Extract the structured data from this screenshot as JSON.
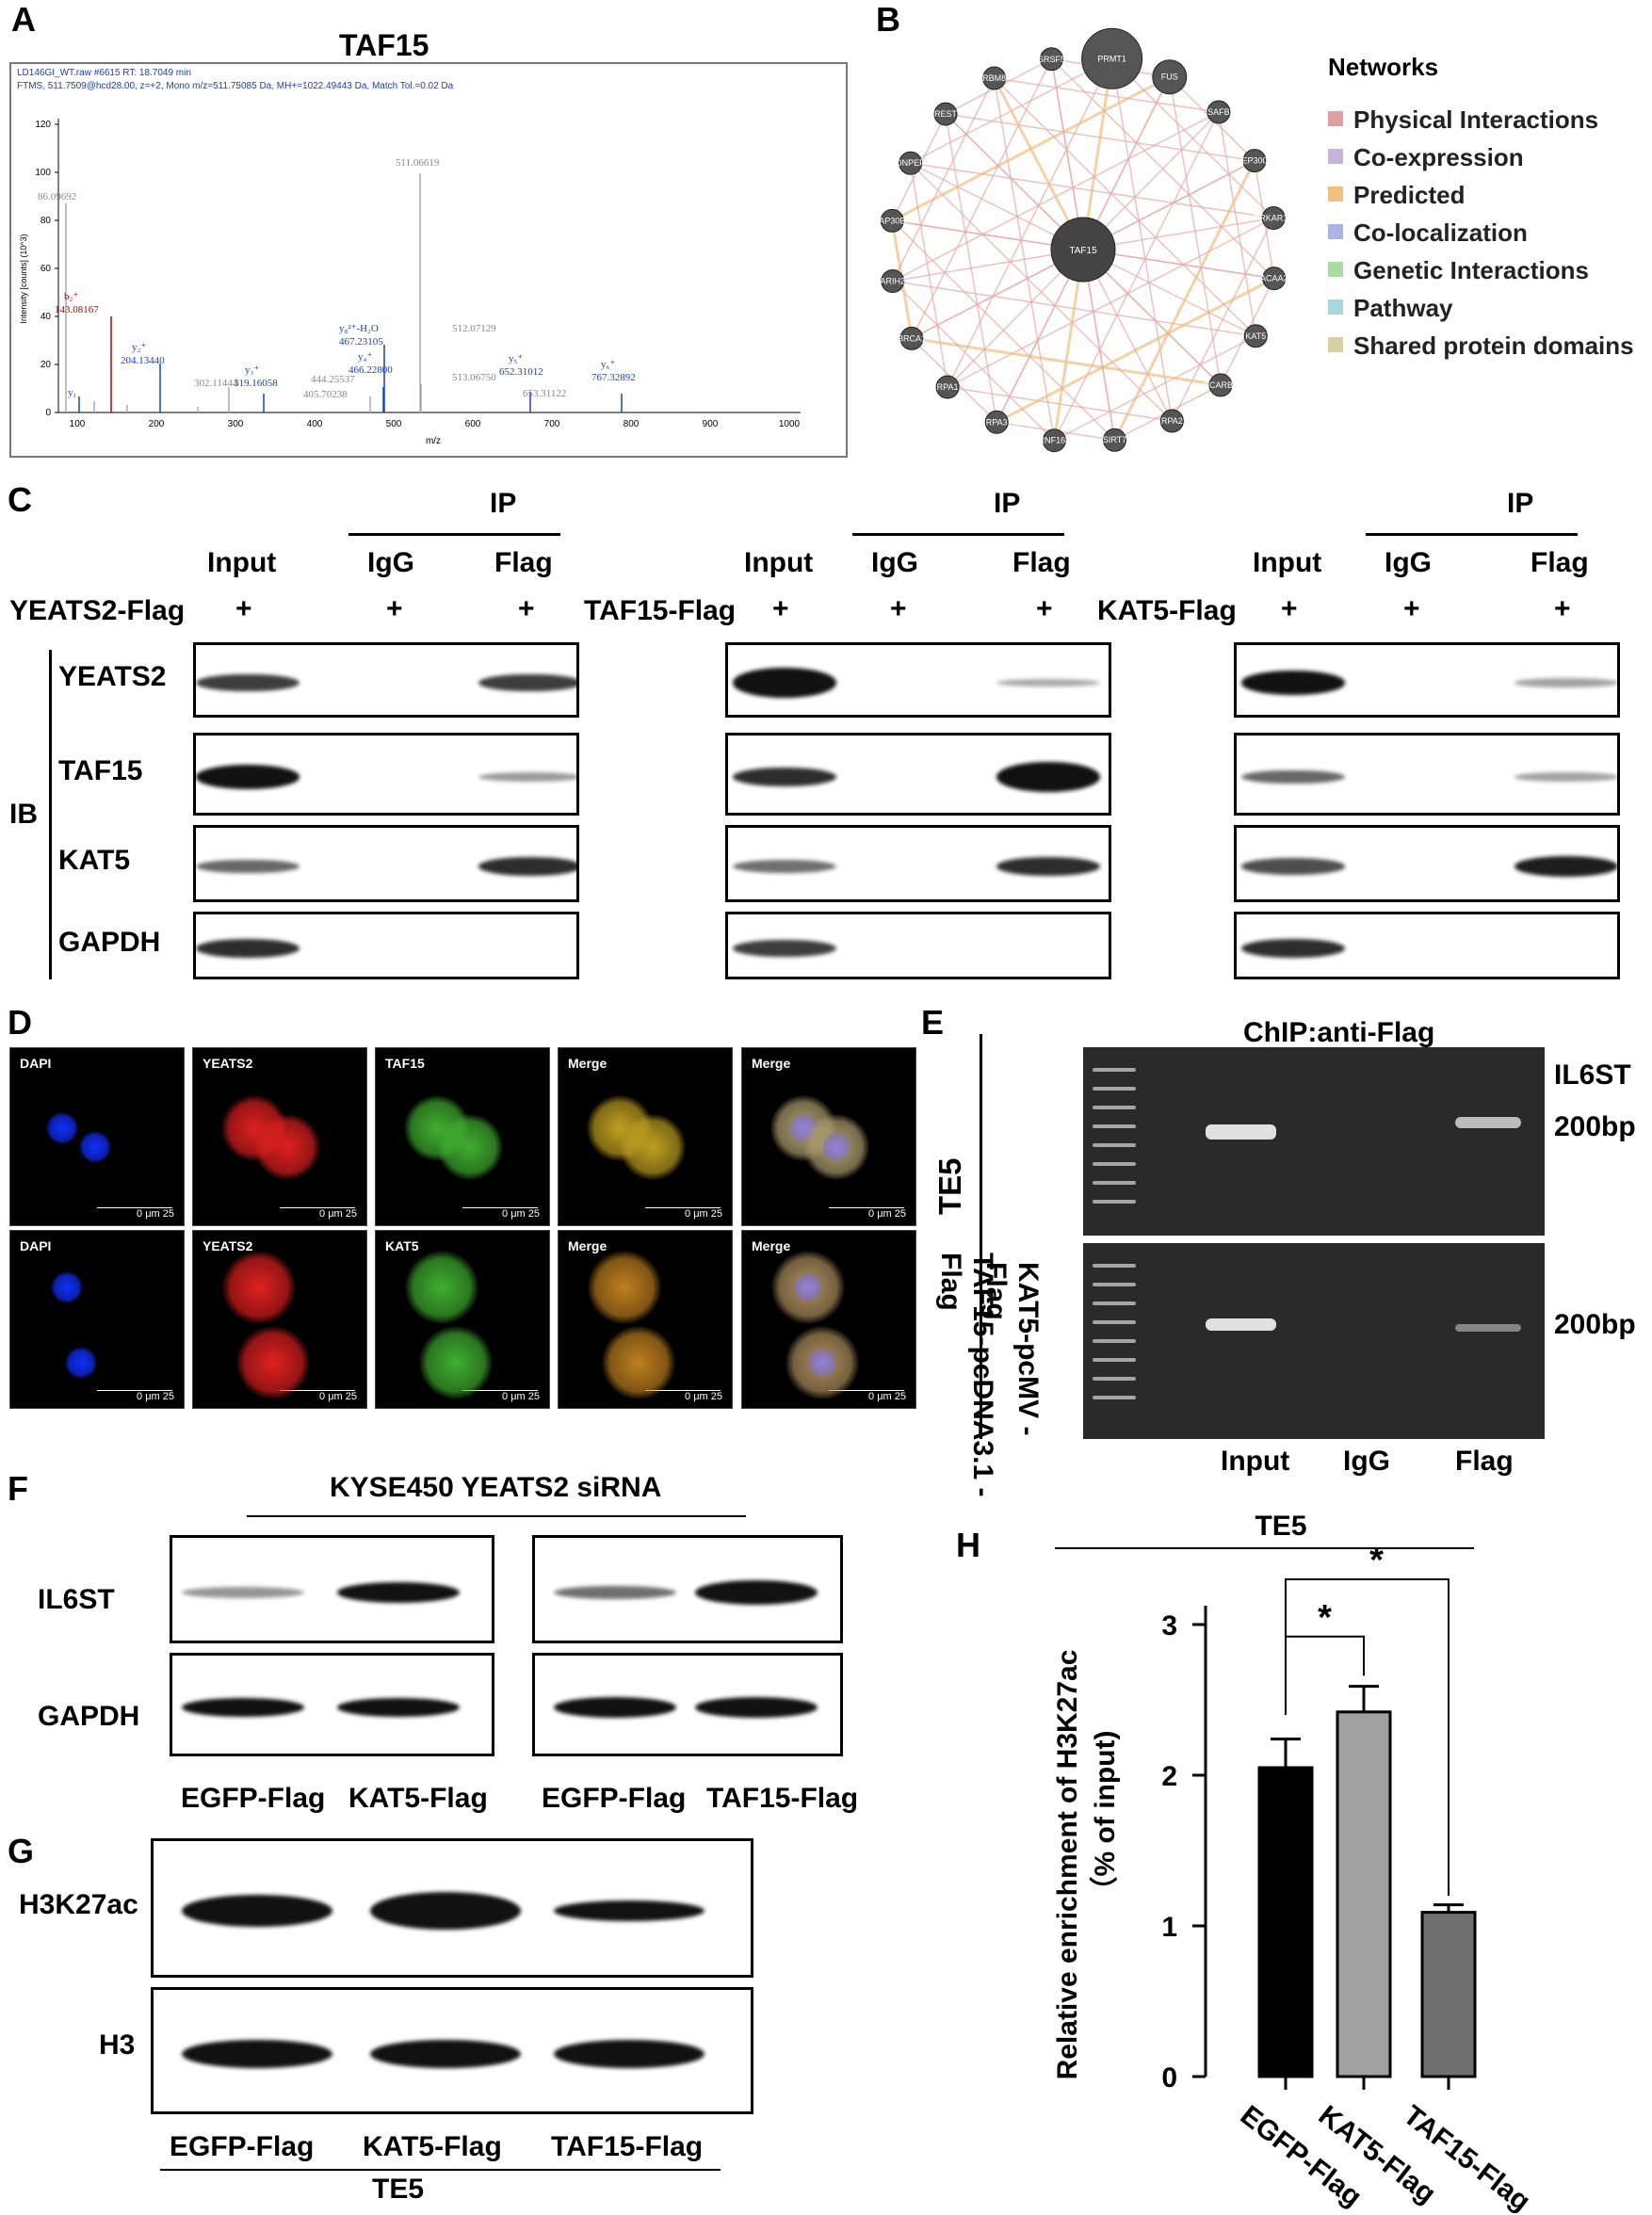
{
  "panels": {
    "A": "A",
    "B": "B",
    "C": "C",
    "D": "D",
    "E": "E",
    "F": "F",
    "G": "G",
    "H": "H"
  },
  "panelA": {
    "title": "TAF15",
    "header1": "LD146GI_WT.raw  #6615  RT: 18.7049 min",
    "header2": "FTMS, 511.7509@hcd28.00, z=+2, Mono m/z=511.75085 Da, MH+=1022.49443 Da, Match Tol.=0.02 Da",
    "ylabel": "Intensity [counts] (10^3)",
    "xlabel": "m/z",
    "yticks": [
      "0",
      "20",
      "40",
      "60",
      "80",
      "100",
      "120"
    ],
    "xticks": [
      "100",
      "200",
      "300",
      "400",
      "500",
      "600",
      "700",
      "800",
      "900",
      "1000"
    ],
    "peak_labels": {
      "p86": "86.09692",
      "b2": "b₂⁺",
      "b2v": "143.08167",
      "y1": "y₁",
      "y2": "y₂⁺",
      "y2v": "204.13440",
      "p302": "302.11444",
      "y3": "y₃⁺",
      "y3v": "319.16058",
      "p444": "444.25537",
      "p405": "405.70238",
      "y8h2o": "y₈²⁺-H₂O",
      "y8h2ov": "467.23105",
      "y4": "y₄⁺",
      "y4v": "466.22800",
      "p511": "511.06619",
      "p512": "512.07129",
      "p513": "513.06750",
      "y5": "y₅⁺",
      "y5v": "652.31012",
      "p653": "653.31122",
      "y6": "y₆⁺",
      "y6v": "767.32892"
    }
  },
  "panelB": {
    "legend_title": "Networks",
    "legend": [
      {
        "label": "Physical Interactions",
        "color": "#e0a0a0"
      },
      {
        "label": "Co-expression",
        "color": "#c8b4d8"
      },
      {
        "label": "Predicted",
        "color": "#f0c080"
      },
      {
        "label": "Co-localization",
        "color": "#a8b4e4"
      },
      {
        "label": "Genetic Interactions",
        "color": "#a8dca0"
      },
      {
        "label": "Pathway",
        "color": "#a8d8dc"
      },
      {
        "label": "Shared protein domains",
        "color": "#d8d0a0"
      }
    ],
    "center": "TAF15",
    "nodes": [
      "PRMT1",
      "FUS",
      "SAFB",
      "EP300",
      "PRKAR1A",
      "ACAA2",
      "KAT5",
      "SCARB2",
      "RPA2",
      "SIRT7",
      "RNF168",
      "RPA3",
      "RPA1",
      "BRCA1",
      "ARIH2",
      "SAP30BP",
      "DNPEP",
      "REST",
      "RBM8",
      "SRSF5"
    ]
  },
  "panelC": {
    "ip": "IP",
    "input": "Input",
    "igg": "IgG",
    "flag": "Flag",
    "plus": "+",
    "ib": "IB",
    "groups": [
      "YEATS2-Flag",
      "TAF15-Flag",
      "KAT5-Flag"
    ],
    "rows": [
      "YEATS2",
      "TAF15",
      "KAT5",
      "GAPDH"
    ]
  },
  "panelD": {
    "row1": [
      "DAPI",
      "YEATS2",
      "TAF15",
      "Merge",
      "Merge"
    ],
    "row2": [
      "DAPI",
      "YEATS2",
      "KAT5",
      "Merge",
      "Merge"
    ],
    "scale": "0      μm      25"
  },
  "panelE": {
    "title": "ChIP:anti-Flag",
    "gene": "IL6ST",
    "size1": "200bp",
    "size2": "200bp",
    "cell": "TE5",
    "row1": "TAF15-pcDNA3.1 -Flag",
    "row2": "KAT5-pcMV -Flag",
    "lanes": [
      "Input",
      "IgG",
      "Flag"
    ]
  },
  "panelF": {
    "title": "KYSE450 YEATS2 siRNA",
    "rows": [
      "IL6ST",
      "GAPDH"
    ],
    "lanes": [
      "EGFP-Flag",
      "KAT5-Flag",
      "EGFP-Flag",
      "TAF15-Flag"
    ]
  },
  "panelG": {
    "rows": [
      "H3K27ac",
      "H3"
    ],
    "lanes": [
      "EGFP-Flag",
      "KAT5-Flag",
      "TAF15-Flag"
    ],
    "cell": "TE5"
  },
  "chart_data": {
    "type": "bar",
    "title": "TE5",
    "ylabel": "Relative enrichment of H3K27ac (% of input)",
    "ylabel1": "Relative enrichment of H3K27ac",
    "ylabel2": "（% of input)",
    "categories": [
      "EGFP-Flag",
      "KAT5-Flag",
      "TAF15-Flag"
    ],
    "values": [
      2.05,
      2.42,
      1.09
    ],
    "errors": [
      0.19,
      0.17,
      0.05
    ],
    "colors": [
      "#000000",
      "#a0a0a0",
      "#707070"
    ],
    "ylim": [
      0,
      3
    ],
    "yticks": [
      "0",
      "1",
      "2",
      "3"
    ],
    "significance": "*"
  }
}
